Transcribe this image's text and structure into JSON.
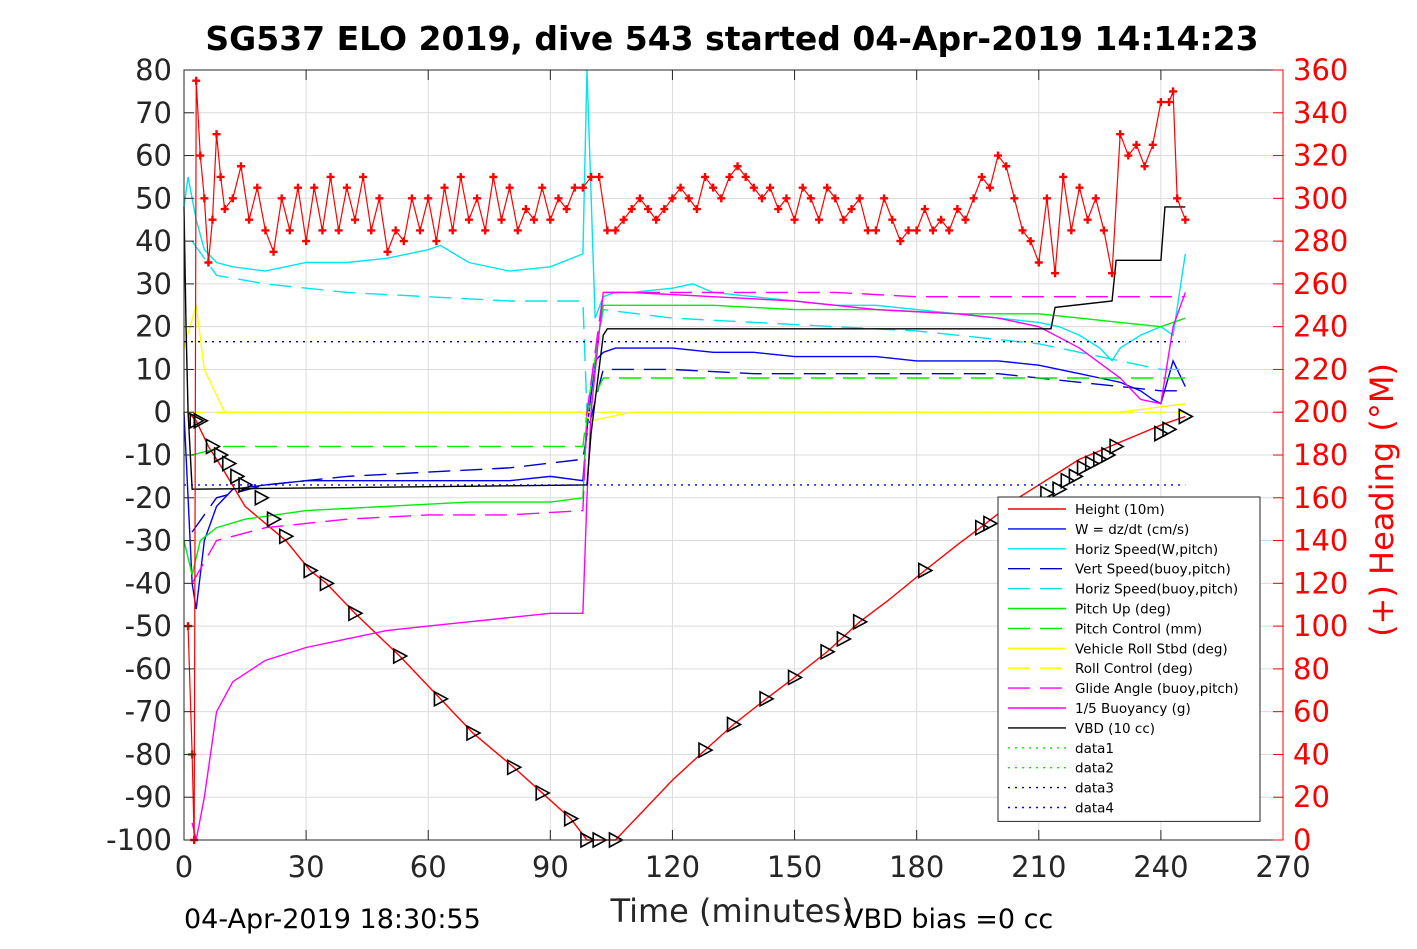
{
  "chart_data": {
    "type": "line",
    "title": "SG537 ELO 2019, dive 543 started 04-Apr-2019 14:14:23",
    "xlabel": "Time (minutes)",
    "ylabel_left": "",
    "ylabel_right": "(+) Heading (°M)",
    "xlim": [
      0,
      270
    ],
    "ylim_left": [
      -100,
      80
    ],
    "ylim_right": [
      0,
      360
    ],
    "x_ticks": [
      0,
      30,
      60,
      90,
      120,
      150,
      180,
      210,
      240,
      270
    ],
    "y_ticks_left": [
      -100,
      -90,
      -80,
      -70,
      -60,
      -50,
      -40,
      -30,
      -20,
      -10,
      0,
      10,
      20,
      30,
      40,
      50,
      60,
      70,
      80
    ],
    "y_ticks_right": [
      0,
      20,
      40,
      60,
      80,
      100,
      120,
      140,
      160,
      180,
      200,
      220,
      240,
      260,
      280,
      300,
      320,
      340,
      360
    ],
    "grid": true,
    "legend_position": "lower-right",
    "footer_left": "04-Apr-2019 18:30:55",
    "footer_right": "VBD bias =0 cc",
    "series": [
      {
        "name": "Height (10m)",
        "color": "#ff0000",
        "style": "solid",
        "axis": "left",
        "x": [
          1,
          3,
          6,
          10,
          15,
          20,
          25,
          31,
          35,
          42,
          53,
          63,
          71,
          81,
          88,
          95,
          99,
          102,
          106,
          112,
          120,
          128,
          135,
          143,
          150,
          158,
          166,
          173,
          182,
          190,
          197,
          205,
          210,
          215,
          220,
          225,
          230,
          235,
          240,
          246
        ],
        "y": [
          0,
          -2,
          -8,
          -14,
          -22,
          -26,
          -30,
          -37,
          -40,
          -47,
          -57,
          -67,
          -75,
          -83,
          -89,
          -95,
          -100,
          -100,
          -100,
          -94,
          -86,
          -79,
          -73,
          -67,
          -62,
          -56,
          -49,
          -44,
          -37,
          -31,
          -26,
          -20,
          -17,
          -14,
          -11,
          -9,
          -7,
          -5,
          -3,
          -1
        ]
      },
      {
        "name": "W = dz/dt (cm/s)",
        "color": "#0000ff",
        "style": "solid",
        "axis": "left",
        "x": [
          0,
          1,
          2,
          3,
          5,
          8,
          12,
          20,
          30,
          40,
          50,
          60,
          70,
          80,
          90,
          98,
          99,
          101,
          103,
          106,
          110,
          120,
          130,
          140,
          150,
          160,
          170,
          180,
          190,
          200,
          210,
          215,
          220,
          225,
          230,
          235,
          238,
          240,
          243,
          246
        ],
        "y": [
          0,
          -20,
          -40,
          -46,
          -30,
          -22,
          -18,
          -17,
          -16,
          -16,
          -16,
          -16,
          -16,
          -16,
          -15,
          -16,
          -4,
          12,
          14,
          15,
          15,
          15,
          14,
          14,
          13,
          13,
          13,
          12,
          12,
          12,
          11,
          10,
          9,
          8,
          7,
          5,
          3,
          2,
          12,
          6
        ]
      },
      {
        "name": "Horiz Speed(W,pitch)",
        "color": "#00e5ee",
        "style": "solid",
        "axis": "left",
        "x": [
          0,
          1,
          2,
          3,
          5,
          8,
          12,
          20,
          30,
          40,
          50,
          60,
          63,
          70,
          80,
          90,
          98,
          99,
          101,
          103,
          106,
          110,
          120,
          125,
          130,
          140,
          150,
          160,
          170,
          180,
          190,
          200,
          210,
          215,
          220,
          225,
          228,
          230,
          235,
          240,
          243,
          246
        ],
        "y": [
          48,
          55,
          50,
          45,
          38,
          35,
          34,
          33,
          35,
          35,
          36,
          38,
          39,
          35,
          33,
          34,
          37,
          80,
          22,
          27,
          28,
          28,
          29,
          30,
          28,
          27,
          26,
          25,
          25,
          24,
          23,
          22,
          21,
          20,
          18,
          15,
          12,
          15,
          18,
          20,
          18,
          37
        ]
      },
      {
        "name": "Vert Speed(buoy,pitch)",
        "color": "#0000cc",
        "style": "dashed",
        "axis": "left",
        "x": [
          2,
          8,
          20,
          40,
          60,
          80,
          98,
          99,
          103,
          120,
          140,
          160,
          180,
          200,
          210,
          220,
          230,
          240,
          246
        ],
        "y": [
          -28,
          -20,
          -17,
          -15,
          -14,
          -13,
          -11,
          -5,
          10,
          10,
          9,
          9,
          9,
          9,
          8,
          7,
          6,
          5,
          5
        ]
      },
      {
        "name": "Horiz Speed(buoy,pitch)",
        "color": "#00e5ee",
        "style": "dashed",
        "axis": "left",
        "x": [
          2,
          8,
          20,
          40,
          60,
          80,
          98,
          99,
          103,
          120,
          140,
          160,
          180,
          200,
          210,
          220,
          230,
          240,
          246
        ],
        "y": [
          40,
          32,
          30,
          28,
          27,
          26,
          26,
          0,
          24,
          22,
          21,
          20,
          19,
          17,
          16,
          14,
          12,
          10,
          10
        ]
      },
      {
        "name": "Pitch Up (deg)",
        "color": "#00ee00",
        "style": "solid",
        "axis": "left",
        "x": [
          0,
          2,
          4,
          8,
          15,
          30,
          50,
          70,
          90,
          98,
          99,
          103,
          110,
          130,
          150,
          170,
          190,
          210,
          220,
          230,
          240,
          246
        ],
        "y": [
          -30,
          -38,
          -30,
          -27,
          -25,
          -23,
          -22,
          -21,
          -21,
          -20,
          0,
          25,
          25,
          25,
          24,
          24,
          23,
          23,
          22,
          21,
          20,
          22
        ]
      },
      {
        "name": "Pitch Control (mm)",
        "color": "#00ee00",
        "style": "dashed",
        "axis": "left",
        "x": [
          2,
          10,
          40,
          98,
          99,
          103,
          140,
          180,
          210,
          246
        ],
        "y": [
          -10,
          -8,
          -8,
          -8,
          0,
          8,
          8,
          8,
          8,
          8
        ]
      },
      {
        "name": "Vehicle Roll Stbd (deg)",
        "color": "#ffff00",
        "style": "solid",
        "axis": "left",
        "x": [
          0,
          3,
          5,
          10,
          20,
          40,
          60,
          80,
          98,
          100,
          110,
          130,
          150,
          170,
          190,
          210,
          230,
          246
        ],
        "y": [
          15,
          25,
          10,
          0,
          0,
          0,
          0,
          0,
          0,
          -2,
          0,
          0,
          0,
          0,
          0,
          0,
          0,
          2
        ]
      },
      {
        "name": "Roll Control (deg)",
        "color": "#ffff00",
        "style": "dashed",
        "axis": "left",
        "x": [
          0,
          10,
          40,
          98,
          100,
          140,
          180,
          246
        ],
        "y": [
          0,
          0,
          0,
          0,
          0,
          0,
          0,
          0
        ]
      },
      {
        "name": "Glide Angle (buoy,pitch)",
        "color": "#ff00ff",
        "style": "dashed",
        "axis": "left",
        "x": [
          2,
          8,
          20,
          40,
          60,
          80,
          98,
          99,
          103,
          120,
          140,
          160,
          180,
          200,
          210,
          220,
          230,
          240,
          246
        ],
        "y": [
          -40,
          -30,
          -27,
          -25,
          -24,
          -24,
          -23,
          0,
          28,
          28,
          28,
          28,
          27,
          27,
          27,
          27,
          27,
          27,
          27
        ]
      },
      {
        "name": "1/5 Buoyancy (g)",
        "color": "#ff00ff",
        "style": "solid",
        "axis": "left",
        "x": [
          2,
          3,
          5,
          8,
          12,
          20,
          30,
          40,
          50,
          60,
          70,
          80,
          90,
          98,
          99,
          100,
          103,
          110,
          130,
          150,
          170,
          190,
          200,
          210,
          220,
          230,
          235,
          240,
          243,
          246
        ],
        "y": [
          -96,
          -100,
          -90,
          -70,
          -63,
          -58,
          -55,
          -53,
          -51,
          -50,
          -49,
          -48,
          -47,
          -47,
          -20,
          0,
          28,
          28,
          27,
          26,
          24,
          23,
          22,
          20,
          15,
          8,
          3,
          2,
          20,
          28
        ]
      },
      {
        "name": "VBD (10 cc)",
        "color": "#000000",
        "style": "solid",
        "axis": "left",
        "x": [
          0,
          0.5,
          1,
          2,
          99,
          100,
          103,
          104,
          213,
          214,
          228,
          229,
          240,
          241,
          246
        ],
        "y": [
          48,
          20,
          0,
          -18,
          -17,
          -5,
          18,
          19.5,
          19.5,
          24.5,
          26,
          35.5,
          35.5,
          48,
          48
        ]
      },
      {
        "name": "data1",
        "color": "#00ee00",
        "style": "dotted",
        "axis": "left",
        "x": [],
        "y": []
      },
      {
        "name": "data2",
        "color": "#00ee00",
        "style": "dotted",
        "axis": "left",
        "x": [],
        "y": []
      },
      {
        "name": "data3",
        "color": "#00008b",
        "style": "dotted",
        "axis": "left",
        "x": [
          0,
          246
        ],
        "y": [
          16.5,
          16.5
        ]
      },
      {
        "name": "data4",
        "color": "#0000ff",
        "style": "dotted",
        "axis": "left",
        "x": [
          0,
          246
        ],
        "y": [
          -17,
          -17
        ]
      }
    ],
    "heading_series": {
      "name": "Heading",
      "color": "#ff0000",
      "marker": "+",
      "axis": "right",
      "x": [
        1,
        2,
        2.5,
        3,
        4,
        5,
        6,
        7,
        8,
        9,
        10,
        12,
        14,
        16,
        18,
        20,
        22,
        24,
        26,
        28,
        30,
        32,
        34,
        36,
        38,
        40,
        42,
        44,
        46,
        48,
        50,
        52,
        54,
        56,
        58,
        60,
        62,
        64,
        66,
        68,
        70,
        72,
        74,
        76,
        78,
        80,
        82,
        84,
        86,
        88,
        90,
        92,
        94,
        96,
        98,
        100,
        102,
        104,
        106,
        108,
        110,
        112,
        114,
        116,
        118,
        120,
        122,
        124,
        126,
        128,
        130,
        132,
        134,
        136,
        138,
        140,
        142,
        144,
        146,
        148,
        150,
        152,
        154,
        156,
        158,
        160,
        162,
        164,
        166,
        168,
        170,
        172,
        174,
        176,
        178,
        180,
        182,
        184,
        186,
        188,
        190,
        192,
        194,
        196,
        198,
        200,
        202,
        204,
        206,
        208,
        210,
        212,
        214,
        216,
        218,
        220,
        222,
        224,
        226,
        228,
        230,
        232,
        234,
        236,
        238,
        240,
        242,
        243,
        244,
        246
      ],
      "y": [
        100,
        40,
        0,
        355,
        320,
        300,
        270,
        290,
        330,
        310,
        295,
        300,
        315,
        290,
        305,
        285,
        275,
        300,
        285,
        305,
        280,
        305,
        285,
        310,
        285,
        305,
        290,
        310,
        285,
        300,
        275,
        285,
        280,
        300,
        285,
        300,
        280,
        305,
        285,
        310,
        290,
        300,
        285,
        310,
        290,
        305,
        285,
        295,
        290,
        305,
        290,
        300,
        295,
        305,
        305,
        310,
        310,
        285,
        285,
        290,
        295,
        300,
        295,
        290,
        295,
        300,
        305,
        300,
        295,
        310,
        305,
        300,
        310,
        315,
        310,
        305,
        300,
        305,
        295,
        300,
        290,
        305,
        300,
        290,
        305,
        300,
        290,
        295,
        300,
        285,
        285,
        300,
        290,
        280,
        285,
        285,
        295,
        285,
        290,
        285,
        295,
        290,
        300,
        310,
        305,
        320,
        315,
        300,
        285,
        280,
        270,
        300,
        265,
        310,
        285,
        305,
        290,
        300,
        285,
        265,
        330,
        320,
        325,
        315,
        325,
        345,
        345,
        350,
        300,
        290
      ]
    },
    "markers_series": {
      "name": "sample markers",
      "color": "#000000",
      "marker": "triangle",
      "x": [
        3,
        4,
        7,
        9,
        11,
        13,
        15,
        19,
        22,
        25,
        31,
        35,
        42,
        53,
        63,
        71,
        81,
        88,
        95,
        99,
        102,
        106,
        128,
        135,
        143,
        150,
        158,
        162,
        166,
        182,
        196,
        198,
        212,
        215,
        217,
        219,
        221,
        223,
        225,
        227,
        229,
        240,
        242,
        246
      ],
      "y": [
        -2,
        -2,
        -8,
        -10,
        -12,
        -15,
        -17,
        -20,
        -25,
        -29,
        -37,
        -40,
        -47,
        -57,
        -67,
        -75,
        -83,
        -89,
        -95,
        -100,
        -100,
        -100,
        -79,
        -73,
        -67,
        -62,
        -56,
        -53,
        -49,
        -37,
        -27,
        -26,
        -19,
        -18,
        -16,
        -15,
        -13,
        -12,
        -11,
        -10,
        -8,
        -5,
        -4,
        -1
      ]
    },
    "legend": [
      "Height (10m)",
      "W = dz/dt (cm/s)",
      "Horiz Speed(W,pitch)",
      "Vert Speed(buoy,pitch)",
      "Horiz Speed(buoy,pitch)",
      "Pitch Up (deg)",
      "Pitch Control (mm)",
      "Vehicle Roll Stbd (deg)",
      "Roll Control (deg)",
      "Glide Angle (buoy,pitch)",
      "1/5 Buoyancy (g)",
      "VBD (10 cc)",
      "data1",
      "data2",
      "data3",
      "data4"
    ]
  }
}
